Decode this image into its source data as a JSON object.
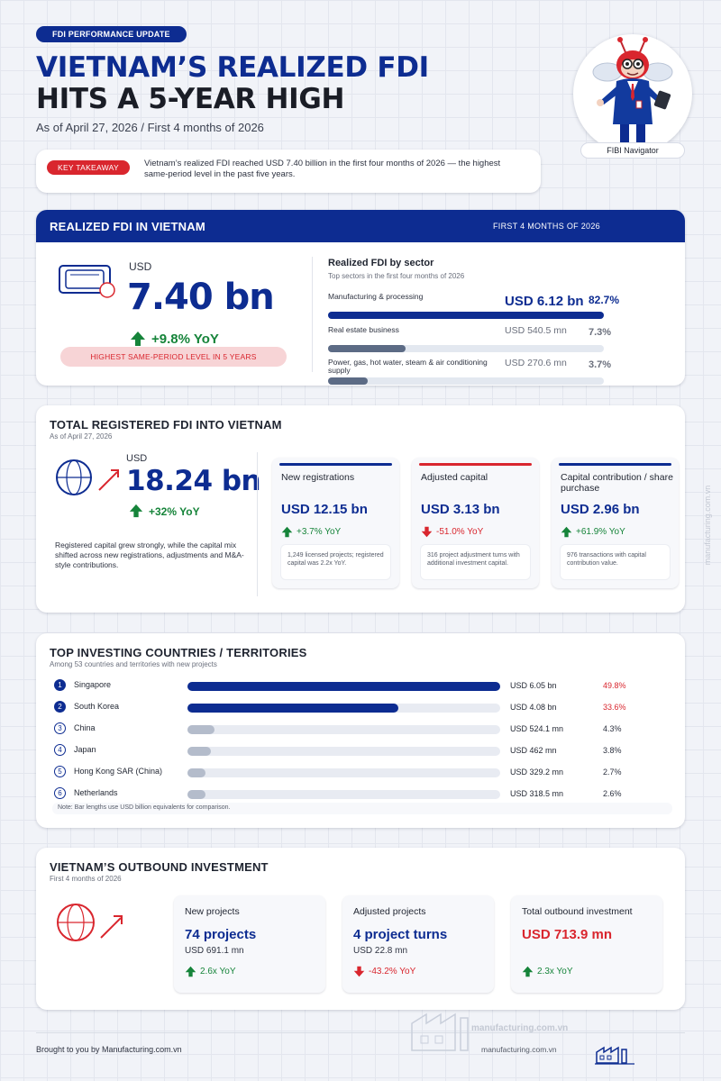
{
  "header": {
    "badge": "FDI PERFORMANCE UPDATE",
    "title_line1": "VIETNAM’S REALIZED FDI",
    "title_line2": "HITS A 5-YEAR HIGH",
    "subtitle": "As of April 27, 2026 / First 4 months of 2026",
    "takeaway_label": "KEY TAKEAWAY",
    "takeaway_text": "Vietnam’s realized FDI reached USD 7.40 billion in the first four months of 2026 — the highest same-period level in the past five years.",
    "mascot_label": "FIBI Navigator"
  },
  "realized": {
    "title": "REALIZED FDI IN VIETNAM",
    "period": "FIRST 4 MONTHS OF 2026",
    "currency": "USD",
    "value": "7.40 bn",
    "growth": "+9.8% YoY",
    "badge": "HIGHEST SAME-PERIOD LEVEL IN 5 YEARS",
    "sector_title": "Realized FDI by sector",
    "sector_subtitle": "Top sectors in the first four months of 2026",
    "sectors": [
      {
        "name": "Manufacturing & processing",
        "value": "USD 6.12 bn",
        "share": "82.7%",
        "fraction": 0.827
      },
      {
        "name": "Real estate business",
        "value": "USD 540.5 mn",
        "share": "7.3%",
        "fraction": 0.073
      },
      {
        "name": "Power, gas, hot water, steam & air conditioning supply",
        "value": "USD 270.6 mn",
        "share": "3.7%",
        "fraction": 0.037
      }
    ]
  },
  "registered": {
    "title": "TOTAL REGISTERED FDI INTO VIETNAM",
    "date": "As of April 27, 2026",
    "currency": "USD",
    "value": "18.24 bn",
    "growth": "+32% YoY",
    "note": "Registered capital grew strongly, while the capital mix shifted across new registrations, adjustments and M&A-style contributions.",
    "items": [
      {
        "title": "New registrations",
        "value": "USD 12.15 bn",
        "change": "+3.7% YoY",
        "direction": "up",
        "detail": "1,249 licensed projects; registered capital was 2.2x YoY."
      },
      {
        "title": "Adjusted capital",
        "value": "USD 3.13 bn",
        "change": "-51.0% YoY",
        "direction": "down",
        "detail": "316 project adjustment turns with additional investment capital."
      },
      {
        "title": "Capital contribution / share purchase",
        "value": "USD 2.96 bn",
        "change": "+61.9% YoY",
        "direction": "up",
        "detail": "976 transactions with capital contribution value."
      }
    ]
  },
  "countries": {
    "title": "TOP INVESTING COUNTRIES / TERRITORIES",
    "subtitle": "Among 53 countries and territories with new projects",
    "note": "Note: Bar lengths use USD billion equivalents for comparison.",
    "chart_data": {
      "type": "bar",
      "categories": [
        "Singapore",
        "South Korea",
        "China",
        "Japan",
        "Hong Kong SAR (China)",
        "Netherlands"
      ],
      "values": [
        6.05,
        4.08,
        0.5241,
        0.462,
        0.3292,
        0.3185
      ],
      "labels": [
        "USD 6.05 bn",
        "USD 4.08 bn",
        "USD 524.1 mn",
        "USD 462 mn",
        "USD 329.2 mn",
        "USD 318.5 mn"
      ],
      "shares": [
        "49.8%",
        "33.6%",
        "4.3%",
        "3.8%",
        "2.7%",
        "2.6%"
      ],
      "ranks": [
        "1",
        "2",
        "3",
        "4",
        "5",
        "6"
      ]
    }
  },
  "outbound": {
    "title": "VIETNAM’S OUTBOUND INVESTMENT",
    "subtitle": "First 4 months of 2026",
    "items": [
      {
        "title": "New projects",
        "value": "74 projects",
        "sub": "USD 691.1 mn",
        "change": "2.6x YoY",
        "direction": "up"
      },
      {
        "title": "Adjusted projects",
        "value": "4 project turns",
        "sub": "USD 22.8 mn",
        "change": "-43.2% YoY",
        "direction": "down"
      },
      {
        "title": "Total outbound investment",
        "value": "USD 713.9 mn",
        "sub": "",
        "change": "2.3x YoY",
        "direction": "up"
      }
    ]
  },
  "footer": {
    "credit": "Brought to you by Manufacturing.com.vn",
    "site": "manufacturing.com.vn",
    "watermark": "manufacturing.com.vn",
    "side_watermark": "manufacturing.com.vn"
  },
  "colors": {
    "navy": "#0d2c91",
    "red": "#d9262e",
    "green": "#16843a",
    "gray_bar": "#b4bccb"
  }
}
